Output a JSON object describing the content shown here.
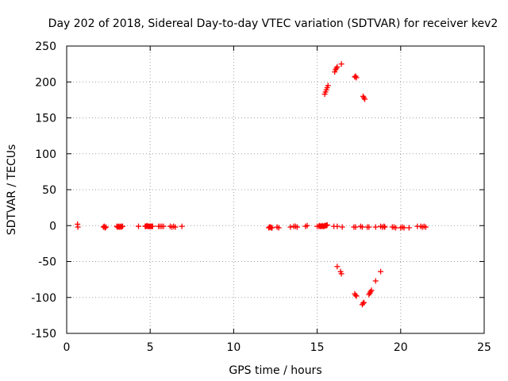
{
  "chart_data": {
    "type": "scatter",
    "title": "Day 202 of 2018, Sidereal Day-to-day VTEC variation (SDTVAR) for receiver kev2",
    "xlabel": "GPS time / hours",
    "ylabel": "SDTVAR / TECUs",
    "xlim": [
      0,
      25
    ],
    "ylim": [
      -150,
      250
    ],
    "xticks": [
      0,
      5,
      10,
      15,
      20,
      25
    ],
    "yticks": [
      -150,
      -100,
      -50,
      0,
      50,
      100,
      150,
      200,
      250
    ],
    "xtick_labels": [
      "0",
      "5",
      "10",
      "15",
      "20",
      "25"
    ],
    "ytick_labels": [
      "-150",
      "-100",
      "-50",
      "0",
      "50",
      "100",
      "150",
      "200",
      "250"
    ],
    "grid": true,
    "marker": "+",
    "color": "#ff0000",
    "series": [
      {
        "name": "SDTVAR",
        "x": [
          0.65,
          0.67,
          2.2,
          2.25,
          2.3,
          2.35,
          3.0,
          3.05,
          3.1,
          3.15,
          3.2,
          3.25,
          3.3,
          3.35,
          4.3,
          4.7,
          4.75,
          4.8,
          4.85,
          4.9,
          4.95,
          5.0,
          5.05,
          5.1,
          5.15,
          5.5,
          5.6,
          5.7,
          5.8,
          6.2,
          6.3,
          6.4,
          6.5,
          6.9,
          12.1,
          12.15,
          12.2,
          12.25,
          12.3,
          12.6,
          12.7,
          13.4,
          13.6,
          13.7,
          13.8,
          14.3,
          14.4,
          15.0,
          15.1,
          15.15,
          15.2,
          15.25,
          15.3,
          15.35,
          15.4,
          15.45,
          15.5,
          15.55,
          15.6,
          16.0,
          16.2,
          16.5,
          17.2,
          17.3,
          17.6,
          17.7,
          18.0,
          18.1,
          18.5,
          18.8,
          18.9,
          19.0,
          19.05,
          19.5,
          19.6,
          19.7,
          20.0,
          20.1,
          20.2,
          20.5,
          21.0,
          21.2,
          21.3,
          21.4,
          21.5,
          15.45,
          15.5,
          15.55,
          15.6,
          15.65,
          16.05,
          16.1,
          16.15,
          16.2,
          16.45,
          17.25,
          17.3,
          17.35,
          17.75,
          17.8,
          17.85,
          16.2,
          16.4,
          16.45,
          17.25,
          17.3,
          17.35,
          17.7,
          17.75,
          17.8,
          18.1,
          18.15,
          18.2,
          18.25,
          18.5,
          18.8
        ],
        "y": [
          2,
          -2,
          -2,
          -1,
          -3,
          -2,
          -1,
          -2,
          -1,
          -2,
          -1,
          -2,
          -1,
          -1,
          -1,
          -1,
          -1,
          0,
          -1,
          -1,
          -1,
          -1,
          -1,
          -1,
          -1,
          -1,
          -1,
          -1,
          -1,
          -1,
          -2,
          -1,
          -2,
          -1,
          -3,
          -2,
          -2,
          -3,
          -3,
          -2,
          -3,
          -2,
          -1,
          -1,
          -2,
          -1,
          0,
          -1,
          -1,
          0,
          -1,
          -1,
          0,
          -1,
          -1,
          0,
          0,
          0,
          1,
          -1,
          -1,
          -2,
          -2,
          -2,
          -1,
          -2,
          -2,
          -2,
          -2,
          -1,
          -2,
          -1,
          -2,
          -2,
          -2,
          -3,
          -3,
          -2,
          -3,
          -3,
          -1,
          -1,
          -2,
          -1,
          -2,
          183,
          186,
          189,
          192,
          195,
          214,
          217,
          219,
          221,
          225,
          207,
          208,
          206,
          180,
          178,
          176,
          -57,
          -64,
          -67,
          -95,
          -97,
          -98,
          -110,
          -108,
          -107,
          -96,
          -94,
          -92,
          -90,
          -77,
          -64
        ]
      }
    ]
  }
}
